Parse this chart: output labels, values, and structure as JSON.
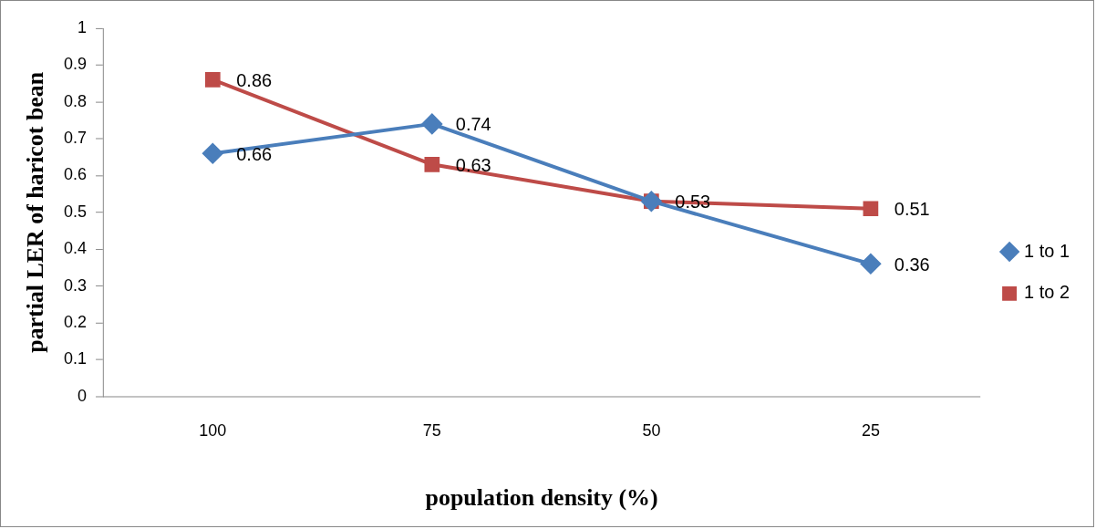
{
  "chart_data": {
    "type": "line",
    "xlabel": "population density (%)",
    "ylabel": "partial LER of haricot bean",
    "categories": [
      "100",
      "75",
      "50",
      "25"
    ],
    "series": [
      {
        "name": "1 to 1",
        "color": "#4a7ebb",
        "marker": "diamond",
        "values": [
          0.66,
          0.74,
          0.53,
          0.36
        ],
        "value_labels": [
          "0.66",
          "0.74",
          null,
          "0.36"
        ]
      },
      {
        "name": "1 to 2",
        "color": "#be4b48",
        "marker": "square",
        "values": [
          0.86,
          0.63,
          0.53,
          0.51
        ],
        "value_labels": [
          "0.86",
          "0.63",
          "0.53",
          "0.51"
        ]
      }
    ],
    "ylim": [
      0,
      1
    ],
    "yticks": [
      0,
      0.1,
      0.2,
      0.3,
      0.4,
      0.5,
      0.6,
      0.7,
      0.8,
      0.9,
      1
    ],
    "grid": false,
    "legend": "right"
  }
}
